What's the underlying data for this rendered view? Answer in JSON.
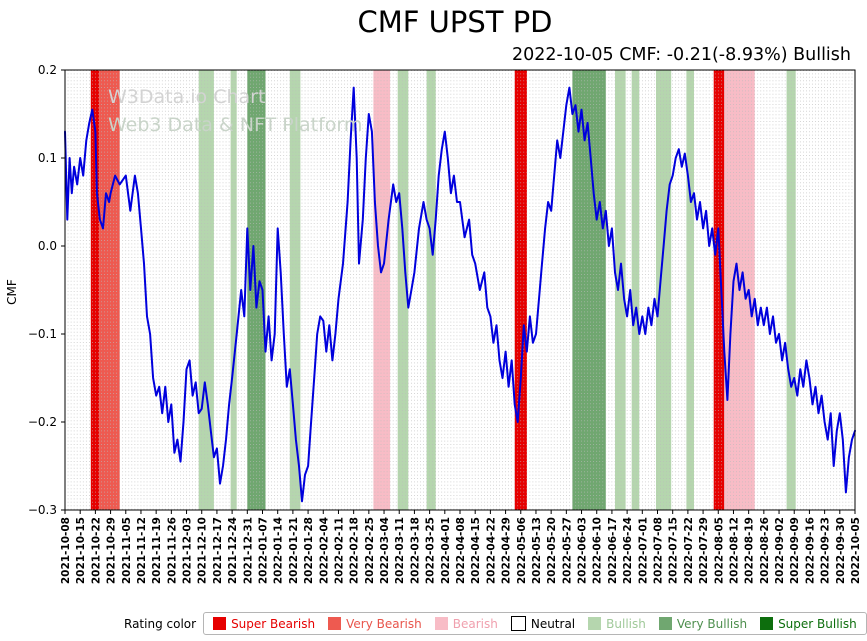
{
  "header": {
    "title": "CMF UPST PD",
    "subtitle": "2022-10-05 CMF: -0.21(-8.93%) Bullish"
  },
  "watermark": {
    "line1": "W3Data.io Chart",
    "line2": "Web3 Data & NFT Platform"
  },
  "legend": {
    "label": "Rating color",
    "items": [
      {
        "label": "Super Bearish",
        "color": "#e60000",
        "text_color": "#e60000"
      },
      {
        "label": "Very Bearish",
        "color": "#ee5a50",
        "text_color": "#e8544b"
      },
      {
        "label": "Bearish",
        "color": "#f8bcc6",
        "text_color": "#f0a0ae"
      },
      {
        "label": "Neutral",
        "color": "#ffffff",
        "text_color": "#000000"
      },
      {
        "label": "Bullish",
        "color": "#b5d6ae",
        "text_color": "#a0c99a"
      },
      {
        "label": "Very Bullish",
        "color": "#70a770",
        "text_color": "#4e8f4e"
      },
      {
        "label": "Super Bullish",
        "color": "#0d6e0d",
        "text_color": "#0d6e0d"
      }
    ]
  },
  "chart_data": {
    "type": "line",
    "title": "CMF UPST PD",
    "subtitle": "2022-10-05 CMF: -0.21(-8.93%) Bullish",
    "ylabel": "CMF",
    "ylim": [
      -0.3,
      0.2
    ],
    "yticks": [
      0.2,
      0.1,
      0.0,
      -0.1,
      -0.2,
      -0.3
    ],
    "ytick_labels": [
      "0.2",
      "0.1",
      "0.0",
      "−0.1",
      "−0.2",
      "−0.3"
    ],
    "line_color": "#0000dd",
    "grid": "vertical-dotted-daily",
    "legend_position": "bottom",
    "last_value": -0.21,
    "last_change_pct": -8.93,
    "last_rating": "Bullish",
    "xtick_labels": [
      "2021-10-08",
      "2021-10-15",
      "2021-10-22",
      "2021-10-29",
      "2021-11-05",
      "2021-11-12",
      "2021-11-19",
      "2021-11-26",
      "2021-12-03",
      "2021-12-10",
      "2021-12-17",
      "2021-12-24",
      "2021-12-31",
      "2022-01-07",
      "2022-01-14",
      "2022-01-21",
      "2022-01-28",
      "2022-02-04",
      "2022-02-11",
      "2022-02-18",
      "2022-02-25",
      "2022-03-04",
      "2022-03-11",
      "2022-03-18",
      "2022-03-25",
      "2022-04-01",
      "2022-04-08",
      "2022-04-15",
      "2022-04-22",
      "2022-04-29",
      "2022-05-06",
      "2022-05-13",
      "2022-05-20",
      "2022-05-27",
      "2022-06-03",
      "2022-06-10",
      "2022-06-17",
      "2022-06-24",
      "2022-07-01",
      "2022-07-08",
      "2022-07-15",
      "2022-07-22",
      "2022-07-29",
      "2022-08-05",
      "2022-08-12",
      "2022-08-19",
      "2022-08-26",
      "2022-09-02",
      "2022-09-09",
      "2022-09-16",
      "2022-09-23",
      "2022-09-30",
      "2022-10-05"
    ],
    "x_unit": "week index (0 = 2021-10-08, 52 = 2022-10-05)",
    "rating_colors": {
      "super_bearish": "#e60000",
      "very_bearish": "#ee5a50",
      "bearish": "#f8bcc6",
      "neutral": "#ffffff",
      "bullish": "#b5d6ae",
      "very_bullish": "#70a770",
      "super_bullish": "#0d6e0d"
    },
    "bands": [
      {
        "start": 1.7,
        "end": 2.25,
        "rating": "super_bearish"
      },
      {
        "start": 2.25,
        "end": 3.6,
        "rating": "very_bearish"
      },
      {
        "start": 8.8,
        "end": 9.8,
        "rating": "bullish"
      },
      {
        "start": 10.9,
        "end": 11.3,
        "rating": "bullish"
      },
      {
        "start": 12.0,
        "end": 13.2,
        "rating": "very_bullish"
      },
      {
        "start": 14.8,
        "end": 15.5,
        "rating": "bullish"
      },
      {
        "start": 20.3,
        "end": 21.4,
        "rating": "bearish"
      },
      {
        "start": 21.9,
        "end": 22.6,
        "rating": "bullish"
      },
      {
        "start": 23.8,
        "end": 24.4,
        "rating": "bullish"
      },
      {
        "start": 29.6,
        "end": 30.4,
        "rating": "super_bearish"
      },
      {
        "start": 33.4,
        "end": 35.6,
        "rating": "very_bullish"
      },
      {
        "start": 36.2,
        "end": 36.9,
        "rating": "bullish"
      },
      {
        "start": 37.3,
        "end": 37.8,
        "rating": "bullish"
      },
      {
        "start": 38.9,
        "end": 39.9,
        "rating": "bullish"
      },
      {
        "start": 40.9,
        "end": 41.4,
        "rating": "bullish"
      },
      {
        "start": 42.7,
        "end": 43.4,
        "rating": "super_bearish"
      },
      {
        "start": 43.4,
        "end": 45.4,
        "rating": "bearish"
      },
      {
        "start": 47.5,
        "end": 48.1,
        "rating": "bullish"
      }
    ],
    "points": [
      [
        0,
        0.13
      ],
      [
        0.15,
        0.03
      ],
      [
        0.3,
        0.1
      ],
      [
        0.45,
        0.06
      ],
      [
        0.6,
        0.09
      ],
      [
        0.8,
        0.07
      ],
      [
        1,
        0.1
      ],
      [
        1.2,
        0.08
      ],
      [
        1.4,
        0.12
      ],
      [
        1.6,
        0.14
      ],
      [
        1.8,
        0.155
      ],
      [
        2,
        0.13
      ],
      [
        2.1,
        0.06
      ],
      [
        2.3,
        0.03
      ],
      [
        2.5,
        0.02
      ],
      [
        2.7,
        0.06
      ],
      [
        2.9,
        0.05
      ],
      [
        3,
        0.06
      ],
      [
        3.3,
        0.08
      ],
      [
        3.6,
        0.07
      ],
      [
        4,
        0.08
      ],
      [
        4.3,
        0.04
      ],
      [
        4.6,
        0.08
      ],
      [
        4.8,
        0.06
      ],
      [
        5,
        0.02
      ],
      [
        5.2,
        -0.02
      ],
      [
        5.4,
        -0.08
      ],
      [
        5.6,
        -0.1
      ],
      [
        5.8,
        -0.15
      ],
      [
        6,
        -0.17
      ],
      [
        6.2,
        -0.16
      ],
      [
        6.4,
        -0.19
      ],
      [
        6.6,
        -0.16
      ],
      [
        6.8,
        -0.2
      ],
      [
        7,
        -0.18
      ],
      [
        7.2,
        -0.235
      ],
      [
        7.4,
        -0.22
      ],
      [
        7.6,
        -0.245
      ],
      [
        7.8,
        -0.2
      ],
      [
        8,
        -0.14
      ],
      [
        8.2,
        -0.13
      ],
      [
        8.4,
        -0.17
      ],
      [
        8.6,
        -0.155
      ],
      [
        8.8,
        -0.19
      ],
      [
        9,
        -0.185
      ],
      [
        9.2,
        -0.155
      ],
      [
        9.4,
        -0.18
      ],
      [
        9.6,
        -0.21
      ],
      [
        9.8,
        -0.24
      ],
      [
        10,
        -0.23
      ],
      [
        10.2,
        -0.27
      ],
      [
        10.4,
        -0.25
      ],
      [
        10.6,
        -0.22
      ],
      [
        10.8,
        -0.18
      ],
      [
        11,
        -0.15
      ],
      [
        11.3,
        -0.1
      ],
      [
        11.6,
        -0.05
      ],
      [
        11.8,
        -0.08
      ],
      [
        12,
        0.02
      ],
      [
        12.2,
        -0.05
      ],
      [
        12.4,
        0
      ],
      [
        12.6,
        -0.07
      ],
      [
        12.8,
        -0.04
      ],
      [
        13,
        -0.05
      ],
      [
        13.2,
        -0.12
      ],
      [
        13.4,
        -0.08
      ],
      [
        13.6,
        -0.13
      ],
      [
        13.8,
        -0.1
      ],
      [
        14,
        0.02
      ],
      [
        14.2,
        -0.03
      ],
      [
        14.4,
        -0.1
      ],
      [
        14.6,
        -0.16
      ],
      [
        14.8,
        -0.14
      ],
      [
        15,
        -0.18
      ],
      [
        15.2,
        -0.22
      ],
      [
        15.4,
        -0.25
      ],
      [
        15.6,
        -0.29
      ],
      [
        15.8,
        -0.26
      ],
      [
        16,
        -0.25
      ],
      [
        16.2,
        -0.2
      ],
      [
        16.4,
        -0.15
      ],
      [
        16.6,
        -0.1
      ],
      [
        16.8,
        -0.08
      ],
      [
        17,
        -0.085
      ],
      [
        17.2,
        -0.12
      ],
      [
        17.4,
        -0.09
      ],
      [
        17.6,
        -0.13
      ],
      [
        17.8,
        -0.1
      ],
      [
        18,
        -0.06
      ],
      [
        18.3,
        -0.02
      ],
      [
        18.6,
        0.05
      ],
      [
        18.8,
        0.12
      ],
      [
        19,
        0.18
      ],
      [
        19.2,
        0.1
      ],
      [
        19.35,
        -0.02
      ],
      [
        19.6,
        0.03
      ],
      [
        19.8,
        0.1
      ],
      [
        20,
        0.15
      ],
      [
        20.2,
        0.13
      ],
      [
        20.4,
        0.05
      ],
      [
        20.6,
        0
      ],
      [
        20.8,
        -0.03
      ],
      [
        21,
        -0.02
      ],
      [
        21.3,
        0.03
      ],
      [
        21.6,
        0.07
      ],
      [
        21.8,
        0.05
      ],
      [
        22,
        0.06
      ],
      [
        22.2,
        0.02
      ],
      [
        22.4,
        -0.03
      ],
      [
        22.6,
        -0.07
      ],
      [
        22.8,
        -0.05
      ],
      [
        23,
        -0.03
      ],
      [
        23.3,
        0.02
      ],
      [
        23.6,
        0.05
      ],
      [
        23.8,
        0.03
      ],
      [
        24,
        0.02
      ],
      [
        24.2,
        -0.01
      ],
      [
        24.4,
        0.03
      ],
      [
        24.6,
        0.08
      ],
      [
        24.8,
        0.11
      ],
      [
        25,
        0.13
      ],
      [
        25.2,
        0.1
      ],
      [
        25.4,
        0.06
      ],
      [
        25.6,
        0.08
      ],
      [
        25.8,
        0.05
      ],
      [
        26,
        0.05
      ],
      [
        26.3,
        0.01
      ],
      [
        26.6,
        0.03
      ],
      [
        26.8,
        -0.01
      ],
      [
        27,
        -0.02
      ],
      [
        27.3,
        -0.05
      ],
      [
        27.6,
        -0.03
      ],
      [
        27.8,
        -0.07
      ],
      [
        28,
        -0.08
      ],
      [
        28.2,
        -0.11
      ],
      [
        28.4,
        -0.09
      ],
      [
        28.6,
        -0.13
      ],
      [
        28.8,
        -0.15
      ],
      [
        29,
        -0.12
      ],
      [
        29.2,
        -0.16
      ],
      [
        29.4,
        -0.13
      ],
      [
        29.6,
        -0.18
      ],
      [
        29.8,
        -0.2
      ],
      [
        30,
        -0.15
      ],
      [
        30.2,
        -0.09
      ],
      [
        30.4,
        -0.12
      ],
      [
        30.6,
        -0.08
      ],
      [
        30.8,
        -0.11
      ],
      [
        31,
        -0.1
      ],
      [
        31.2,
        -0.06
      ],
      [
        31.4,
        -0.02
      ],
      [
        31.6,
        0.02
      ],
      [
        31.8,
        0.05
      ],
      [
        32,
        0.04
      ],
      [
        32.2,
        0.08
      ],
      [
        32.4,
        0.12
      ],
      [
        32.6,
        0.1
      ],
      [
        32.8,
        0.13
      ],
      [
        33,
        0.16
      ],
      [
        33.2,
        0.18
      ],
      [
        33.4,
        0.15
      ],
      [
        33.6,
        0.16
      ],
      [
        33.8,
        0.13
      ],
      [
        34,
        0.155
      ],
      [
        34.2,
        0.12
      ],
      [
        34.4,
        0.14
      ],
      [
        34.6,
        0.1
      ],
      [
        34.8,
        0.06
      ],
      [
        35,
        0.03
      ],
      [
        35.2,
        0.05
      ],
      [
        35.4,
        0.02
      ],
      [
        35.6,
        0.04
      ],
      [
        35.8,
        0
      ],
      [
        36,
        0.02
      ],
      [
        36.2,
        -0.03
      ],
      [
        36.4,
        -0.05
      ],
      [
        36.6,
        -0.02
      ],
      [
        36.8,
        -0.06
      ],
      [
        37,
        -0.08
      ],
      [
        37.2,
        -0.05
      ],
      [
        37.4,
        -0.09
      ],
      [
        37.6,
        -0.07
      ],
      [
        37.8,
        -0.1
      ],
      [
        38,
        -0.08
      ],
      [
        38.2,
        -0.1
      ],
      [
        38.4,
        -0.07
      ],
      [
        38.6,
        -0.09
      ],
      [
        38.8,
        -0.06
      ],
      [
        39,
        -0.08
      ],
      [
        39.2,
        -0.04
      ],
      [
        39.4,
        0
      ],
      [
        39.6,
        0.04
      ],
      [
        39.8,
        0.07
      ],
      [
        40,
        0.08
      ],
      [
        40.2,
        0.1
      ],
      [
        40.4,
        0.11
      ],
      [
        40.6,
        0.09
      ],
      [
        40.8,
        0.105
      ],
      [
        41,
        0.08
      ],
      [
        41.2,
        0.05
      ],
      [
        41.4,
        0.06
      ],
      [
        41.6,
        0.03
      ],
      [
        41.8,
        0.05
      ],
      [
        42,
        0.02
      ],
      [
        42.2,
        0.04
      ],
      [
        42.4,
        0
      ],
      [
        42.6,
        0.02
      ],
      [
        42.8,
        -0.01
      ],
      [
        43,
        0.02
      ],
      [
        43.2,
        -0.05
      ],
      [
        43.4,
        -0.12
      ],
      [
        43.6,
        -0.175
      ],
      [
        43.8,
        -0.1
      ],
      [
        44,
        -0.04
      ],
      [
        44.2,
        -0.02
      ],
      [
        44.4,
        -0.05
      ],
      [
        44.6,
        -0.03
      ],
      [
        44.8,
        -0.06
      ],
      [
        45,
        -0.05
      ],
      [
        45.2,
        -0.08
      ],
      [
        45.4,
        -0.06
      ],
      [
        45.6,
        -0.09
      ],
      [
        45.8,
        -0.07
      ],
      [
        46,
        -0.09
      ],
      [
        46.2,
        -0.07
      ],
      [
        46.4,
        -0.1
      ],
      [
        46.6,
        -0.08
      ],
      [
        46.8,
        -0.11
      ],
      [
        47,
        -0.1
      ],
      [
        47.2,
        -0.13
      ],
      [
        47.4,
        -0.11
      ],
      [
        47.6,
        -0.14
      ],
      [
        47.8,
        -0.16
      ],
      [
        48,
        -0.15
      ],
      [
        48.2,
        -0.17
      ],
      [
        48.4,
        -0.14
      ],
      [
        48.6,
        -0.16
      ],
      [
        48.8,
        -0.13
      ],
      [
        49,
        -0.15
      ],
      [
        49.2,
        -0.18
      ],
      [
        49.4,
        -0.16
      ],
      [
        49.6,
        -0.19
      ],
      [
        49.8,
        -0.17
      ],
      [
        50,
        -0.2
      ],
      [
        50.2,
        -0.22
      ],
      [
        50.4,
        -0.19
      ],
      [
        50.6,
        -0.25
      ],
      [
        50.8,
        -0.21
      ],
      [
        51,
        -0.19
      ],
      [
        51.2,
        -0.22
      ],
      [
        51.4,
        -0.28
      ],
      [
        51.6,
        -0.24
      ],
      [
        51.8,
        -0.22
      ],
      [
        52,
        -0.21
      ]
    ]
  }
}
